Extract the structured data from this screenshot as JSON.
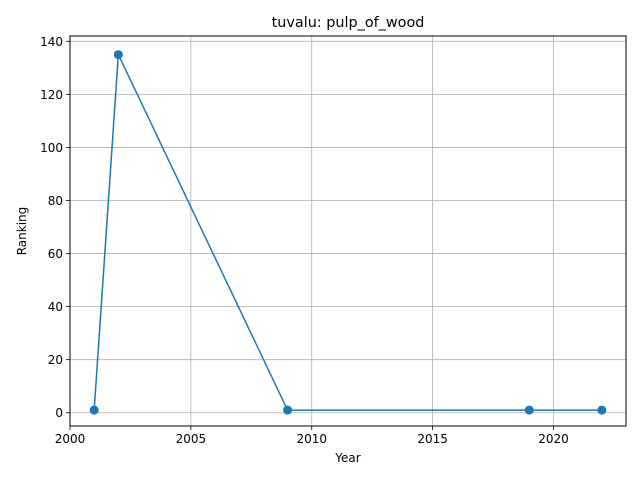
{
  "chart_data": {
    "type": "line",
    "title": "tuvalu: pulp_of_wood",
    "xlabel": "Year",
    "ylabel": "Ranking",
    "xlim": [
      2000,
      2023
    ],
    "ylim": [
      -5,
      142
    ],
    "xticks": [
      2000,
      2005,
      2010,
      2015,
      2020
    ],
    "yticks": [
      0,
      20,
      40,
      60,
      80,
      100,
      120,
      140
    ],
    "grid": true,
    "colors": {
      "line": "#1f77b4",
      "grid": "#b0b0b0",
      "axis": "#000000"
    },
    "series": [
      {
        "x": [
          2001,
          2002,
          2009,
          2019,
          2022
        ],
        "y": [
          1,
          135,
          1,
          1,
          1
        ]
      }
    ]
  }
}
